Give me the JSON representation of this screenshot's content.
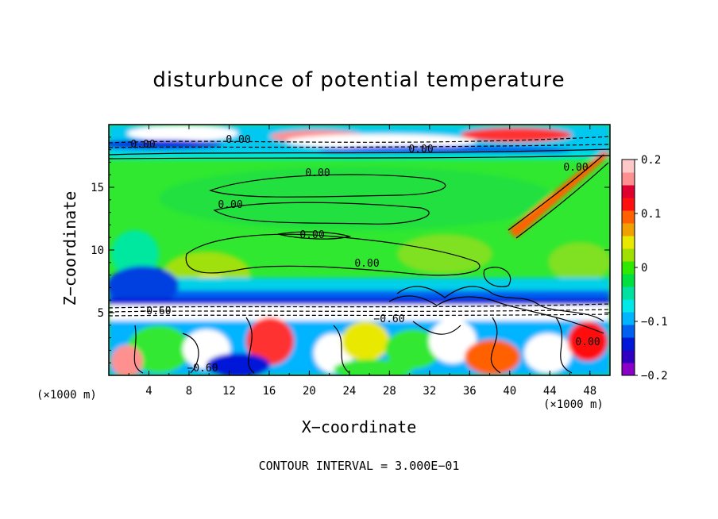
{
  "chart_data": {
    "type": "heatmap",
    "title": "disturbunce of potential temperature",
    "xlabel": "X−coordinate",
    "ylabel": "Z−coordinate",
    "x_unit_left": "(×1000 m)",
    "x_unit_right": "(×1000 m)",
    "footer": "CONTOUR INTERVAL = 3.000E−01",
    "xlim": [
      0,
      50
    ],
    "ylim": [
      0,
      20
    ],
    "x_ticks": [
      "4",
      "8",
      "12",
      "16",
      "20",
      "24",
      "28",
      "32",
      "36",
      "40",
      "44",
      "48"
    ],
    "y_ticks": [
      "5",
      "10",
      "15"
    ],
    "colorbar": {
      "range": [
        -0.2,
        0.2
      ],
      "tick_labels": [
        "0.2",
        "0.1",
        "0",
        "−0.1",
        "−0.2"
      ],
      "colors": [
        "#8a00c8",
        "#3000c0",
        "#0018d8",
        "#0060f0",
        "#00b4ff",
        "#00e8e8",
        "#00e0a0",
        "#00e040",
        "#30e800",
        "#a0e000",
        "#e8e800",
        "#f0a000",
        "#ff6000",
        "#ff1010",
        "#e00030",
        "#ff9090",
        "#ffc8c8"
      ]
    },
    "contour_labels": [
      "0.00",
      "0.00",
      "0.00",
      "0.00",
      "0.00",
      "0.00",
      "0.00",
      "0.00",
      "−0.60",
      "−0.60",
      "−0.60",
      "0.00"
    ],
    "grid": false,
    "legend": "colorbar-right"
  }
}
